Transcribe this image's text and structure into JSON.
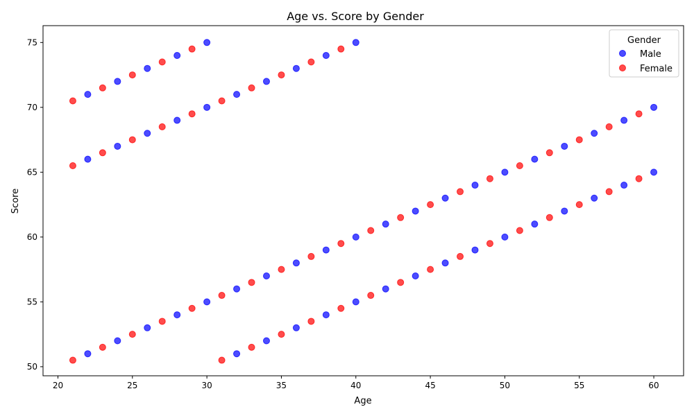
{
  "chart_data": {
    "type": "scatter",
    "title": "Age vs. Score by Gender",
    "xlabel": "Age",
    "ylabel": "Score",
    "xlim": [
      19,
      62
    ],
    "ylim": [
      49.3,
      76.3
    ],
    "xticks": [
      20,
      25,
      30,
      35,
      40,
      45,
      50,
      55,
      60
    ],
    "yticks": [
      50,
      55,
      60,
      65,
      70,
      75
    ],
    "grid": false,
    "legend": {
      "title": "Gender",
      "position": "top-right"
    },
    "series": [
      {
        "name": "Male",
        "color": "#0000ff",
        "points": [
          [
            22,
            71
          ],
          [
            24,
            72
          ],
          [
            26,
            73
          ],
          [
            28,
            74
          ],
          [
            30,
            75
          ],
          [
            22,
            66
          ],
          [
            24,
            67
          ],
          [
            26,
            68
          ],
          [
            28,
            69
          ],
          [
            30,
            70
          ],
          [
            32,
            71
          ],
          [
            34,
            72
          ],
          [
            36,
            73
          ],
          [
            38,
            74
          ],
          [
            40,
            75
          ],
          [
            22,
            51
          ],
          [
            24,
            52
          ],
          [
            26,
            53
          ],
          [
            28,
            54
          ],
          [
            30,
            55
          ],
          [
            32,
            56
          ],
          [
            34,
            57
          ],
          [
            36,
            58
          ],
          [
            38,
            59
          ],
          [
            40,
            60
          ],
          [
            42,
            61
          ],
          [
            44,
            62
          ],
          [
            46,
            63
          ],
          [
            48,
            64
          ],
          [
            50,
            65
          ],
          [
            52,
            66
          ],
          [
            54,
            67
          ],
          [
            56,
            68
          ],
          [
            58,
            69
          ],
          [
            60,
            70
          ],
          [
            32,
            51
          ],
          [
            34,
            52
          ],
          [
            36,
            53
          ],
          [
            38,
            54
          ],
          [
            40,
            55
          ],
          [
            42,
            56
          ],
          [
            44,
            57
          ],
          [
            46,
            58
          ],
          [
            48,
            59
          ],
          [
            50,
            60
          ],
          [
            52,
            61
          ],
          [
            54,
            62
          ],
          [
            56,
            63
          ],
          [
            58,
            64
          ],
          [
            60,
            65
          ]
        ]
      },
      {
        "name": "Female",
        "color": "#ff0000",
        "points": [
          [
            21,
            70.5
          ],
          [
            23,
            71.5
          ],
          [
            25,
            72.5
          ],
          [
            27,
            73.5
          ],
          [
            29,
            74.5
          ],
          [
            21,
            65.5
          ],
          [
            23,
            66.5
          ],
          [
            25,
            67.5
          ],
          [
            27,
            68.5
          ],
          [
            29,
            69.5
          ],
          [
            31,
            70.5
          ],
          [
            33,
            71.5
          ],
          [
            35,
            72.5
          ],
          [
            37,
            73.5
          ],
          [
            39,
            74.5
          ],
          [
            21,
            50.5
          ],
          [
            23,
            51.5
          ],
          [
            25,
            52.5
          ],
          [
            27,
            53.5
          ],
          [
            29,
            54.5
          ],
          [
            31,
            55.5
          ],
          [
            33,
            56.5
          ],
          [
            35,
            57.5
          ],
          [
            37,
            58.5
          ],
          [
            39,
            59.5
          ],
          [
            41,
            60.5
          ],
          [
            43,
            61.5
          ],
          [
            45,
            62.5
          ],
          [
            47,
            63.5
          ],
          [
            49,
            64.5
          ],
          [
            51,
            65.5
          ],
          [
            53,
            66.5
          ],
          [
            55,
            67.5
          ],
          [
            57,
            68.5
          ],
          [
            59,
            69.5
          ],
          [
            31,
            50.5
          ],
          [
            33,
            51.5
          ],
          [
            35,
            52.5
          ],
          [
            37,
            53.5
          ],
          [
            39,
            54.5
          ],
          [
            41,
            55.5
          ],
          [
            43,
            56.5
          ],
          [
            45,
            57.5
          ],
          [
            47,
            58.5
          ],
          [
            49,
            59.5
          ],
          [
            51,
            60.5
          ],
          [
            53,
            61.5
          ],
          [
            55,
            62.5
          ],
          [
            57,
            63.5
          ],
          [
            59,
            64.5
          ]
        ]
      }
    ]
  }
}
